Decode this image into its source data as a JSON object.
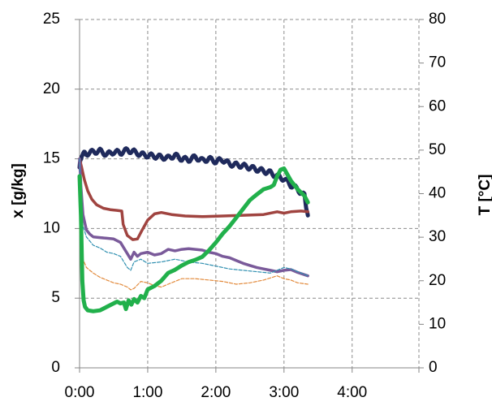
{
  "chart_data": {
    "type": "line",
    "title": "",
    "xlabel": "",
    "ylabel": "x [g/kg]",
    "y2label": "T [°C]",
    "grid": true,
    "legend": "none",
    "x_ticks": [
      "0:00",
      "1:00",
      "2:00",
      "3:00",
      "4:00"
    ],
    "xlim_hours": [
      0,
      4.98
    ],
    "ylim": [
      0,
      25
    ],
    "y_ticks": [
      "0",
      "5",
      "10",
      "15",
      "20",
      "25"
    ],
    "y2lim": [
      0,
      80
    ],
    "y2_ticks": [
      "0",
      "10",
      "20",
      "30",
      "40",
      "50",
      "60",
      "70",
      "80"
    ],
    "series": [
      {
        "color": "#1f2a5c",
        "axis": "right",
        "width": 5,
        "dash": "",
        "jitter": 0.55,
        "x": [
          0.0,
          0.03,
          0.1,
          0.2,
          0.3,
          0.4,
          0.5,
          0.6,
          0.7,
          0.8,
          0.9,
          1.0,
          1.1,
          1.2,
          1.3,
          1.4,
          1.5,
          1.6,
          1.7,
          1.8,
          1.9,
          2.0,
          2.1,
          2.2,
          2.3,
          2.4,
          2.5,
          2.6,
          2.7,
          2.8,
          2.9,
          3.0,
          3.1,
          3.2,
          3.3,
          3.35
        ],
        "y": [
          46.0,
          49.0,
          49.2,
          49.6,
          49.8,
          49.0,
          49.6,
          49.4,
          50.0,
          49.6,
          49.0,
          48.8,
          48.6,
          48.4,
          48.2,
          48.8,
          48.0,
          47.8,
          48.4,
          47.6,
          48.0,
          47.4,
          47.8,
          46.8,
          46.6,
          46.4,
          46.0,
          45.6,
          45.2,
          44.8,
          44.0,
          43.4,
          42.0,
          41.0,
          39.5,
          35.0
        ]
      },
      {
        "color": "#a04440",
        "axis": "left",
        "width": 3.5,
        "dash": "",
        "jitter": 0,
        "x": [
          0.0,
          0.03,
          0.07,
          0.12,
          0.18,
          0.25,
          0.35,
          0.45,
          0.55,
          0.62,
          0.64,
          0.7,
          0.78,
          0.85,
          0.92,
          1.0,
          1.1,
          1.2,
          1.35,
          1.55,
          1.8,
          2.1,
          2.4,
          2.7,
          2.9,
          3.0,
          3.1,
          3.25,
          3.35
        ],
        "y": [
          15.0,
          14.4,
          13.5,
          12.7,
          12.1,
          11.7,
          11.45,
          11.35,
          11.3,
          11.25,
          10.3,
          9.5,
          9.2,
          9.25,
          9.9,
          10.6,
          11.05,
          11.15,
          11.0,
          10.9,
          10.85,
          10.9,
          10.95,
          11.0,
          11.2,
          11.1,
          11.2,
          11.25,
          11.2
        ]
      },
      {
        "color": "#7a5a9a",
        "axis": "left",
        "width": 3.5,
        "dash": "",
        "jitter": 0,
        "x": [
          0.0,
          0.02,
          0.05,
          0.1,
          0.15,
          0.2,
          0.3,
          0.4,
          0.5,
          0.6,
          0.65,
          0.7,
          0.75,
          0.8,
          0.85,
          0.9,
          1.0,
          1.1,
          1.2,
          1.3,
          1.4,
          1.5,
          1.6,
          1.7,
          1.8,
          1.9,
          2.0,
          2.1,
          2.2,
          2.3,
          2.4,
          2.5,
          2.6,
          2.7,
          2.8,
          2.9,
          3.0,
          3.1,
          3.2,
          3.35
        ],
        "y": [
          15.0,
          13.0,
          11.0,
          9.9,
          9.6,
          9.4,
          9.35,
          9.3,
          9.25,
          9.0,
          8.6,
          8.2,
          7.8,
          8.3,
          8.0,
          8.2,
          8.3,
          8.1,
          8.2,
          8.5,
          8.4,
          8.5,
          8.55,
          8.5,
          8.45,
          8.3,
          8.2,
          8.0,
          7.9,
          7.7,
          7.5,
          7.35,
          7.2,
          7.1,
          7.0,
          6.9,
          7.0,
          7.05,
          6.85,
          6.6
        ]
      },
      {
        "color": "#2f8fb0",
        "axis": "left",
        "width": 1.2,
        "dash": "4,2",
        "jitter": 0,
        "x": [
          0.0,
          0.02,
          0.05,
          0.1,
          0.2,
          0.3,
          0.4,
          0.5,
          0.6,
          0.65,
          0.7,
          0.75,
          0.8,
          0.9,
          1.0,
          1.2,
          1.4,
          1.6,
          1.8,
          2.0,
          2.2,
          2.4,
          2.6,
          2.8,
          3.0,
          3.1,
          3.2,
          3.35
        ],
        "y": [
          15.0,
          12.0,
          10.2,
          9.4,
          8.8,
          8.6,
          8.3,
          8.2,
          8.0,
          7.6,
          7.2,
          7.0,
          7.6,
          7.8,
          7.5,
          7.6,
          7.8,
          7.6,
          7.5,
          7.3,
          7.1,
          7.0,
          6.9,
          6.8,
          7.2,
          7.1,
          6.9,
          6.6
        ]
      },
      {
        "color": "#e2893a",
        "axis": "left",
        "width": 1.2,
        "dash": "4,2",
        "jitter": 0,
        "x": [
          0.0,
          0.02,
          0.05,
          0.1,
          0.2,
          0.3,
          0.4,
          0.5,
          0.6,
          0.7,
          0.75,
          0.8,
          0.9,
          1.0,
          1.1,
          1.2,
          1.3,
          1.5,
          1.7,
          1.9,
          2.1,
          2.3,
          2.5,
          2.7,
          2.9,
          3.0,
          3.1,
          3.2,
          3.35
        ],
        "y": [
          10.0,
          8.5,
          7.8,
          7.2,
          6.8,
          6.5,
          6.3,
          6.1,
          6.0,
          5.8,
          5.6,
          5.7,
          6.2,
          6.1,
          5.9,
          5.8,
          6.0,
          6.4,
          6.4,
          6.3,
          6.2,
          6.0,
          6.1,
          6.3,
          6.6,
          6.4,
          6.3,
          6.1,
          6.0
        ]
      },
      {
        "color": "#21b04b",
        "axis": "right",
        "width": 5,
        "dash": "",
        "jitter": 0,
        "x": [
          0.0,
          0.02,
          0.04,
          0.06,
          0.08,
          0.12,
          0.2,
          0.3,
          0.4,
          0.5,
          0.55,
          0.6,
          0.65,
          0.68,
          0.72,
          0.76,
          0.8,
          0.85,
          0.9,
          0.95,
          1.0,
          1.1,
          1.2,
          1.3,
          1.4,
          1.5,
          1.6,
          1.7,
          1.8,
          1.9,
          2.0,
          2.1,
          2.2,
          2.3,
          2.4,
          2.5,
          2.6,
          2.7,
          2.8,
          2.85,
          2.9,
          2.95,
          3.0,
          3.1,
          3.2,
          3.3,
          3.35
        ],
        "y": [
          44.0,
          35.0,
          20.0,
          15.5,
          14.0,
          13.2,
          13.0,
          13.2,
          14.0,
          14.8,
          15.2,
          14.8,
          15.0,
          13.5,
          15.5,
          14.5,
          15.8,
          15.0,
          16.5,
          16.0,
          18.0,
          18.8,
          20.0,
          21.8,
          22.5,
          23.5,
          24.3,
          24.8,
          25.5,
          27.0,
          28.8,
          30.8,
          32.5,
          34.5,
          36.5,
          38.5,
          39.8,
          41.0,
          41.5,
          42.0,
          44.0,
          45.5,
          45.8,
          43.0,
          41.0,
          39.5,
          38.0
        ]
      }
    ]
  }
}
